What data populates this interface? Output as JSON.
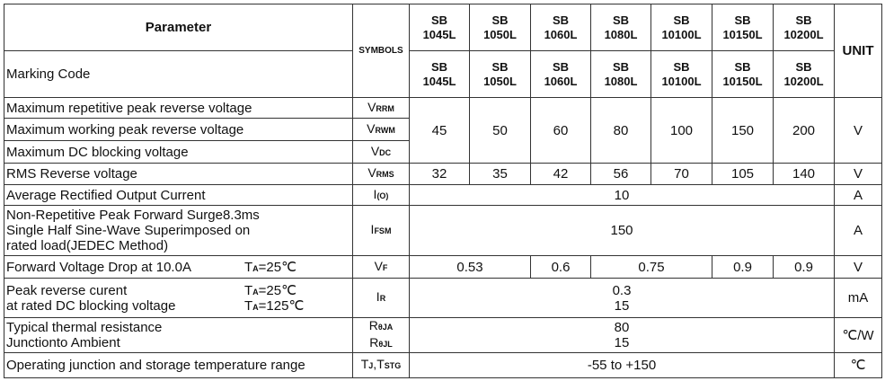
{
  "header": {
    "parameter": "Parameter",
    "symbols": "SYMBOLS",
    "unit": "UNIT",
    "models": [
      [
        "SB",
        "1045L"
      ],
      [
        "SB",
        "1050L"
      ],
      [
        "SB",
        "1060L"
      ],
      [
        "SB",
        "1080L"
      ],
      [
        "SB",
        "10100L"
      ],
      [
        "SB",
        "10150L"
      ],
      [
        "SB",
        "10200L"
      ]
    ]
  },
  "marking": {
    "label": "Marking Code",
    "codes": [
      [
        "SB",
        "1045L"
      ],
      [
        "SB",
        "1050L"
      ],
      [
        "SB",
        "1060L"
      ],
      [
        "SB",
        "1080L"
      ],
      [
        "SB",
        "10100L"
      ],
      [
        "SB",
        "10150L"
      ],
      [
        "SB",
        "10200L"
      ]
    ]
  },
  "rows": {
    "vrrm": {
      "label": "Maximum repetitive peak reverse voltage",
      "sym": "V",
      "sub": "RRM"
    },
    "vrwm": {
      "label": "Maximum working peak reverse voltage",
      "sym": "V",
      "sub": "RWM"
    },
    "vdc": {
      "label": "Maximum DC blocking voltage",
      "sym": "V",
      "sub": "DC"
    },
    "voltage_values": [
      "45",
      "50",
      "60",
      "80",
      "100",
      "150",
      "200"
    ],
    "voltage_unit": "V",
    "vrms": {
      "label": "RMS Reverse voltage",
      "sym": "V",
      "sub": "RMS",
      "values": [
        "32",
        "35",
        "42",
        "56",
        "70",
        "105",
        "140"
      ],
      "unit": "V"
    },
    "io": {
      "label": "Average Rectified Output Current",
      "sym": "I",
      "sub": "(O)",
      "value": "10",
      "unit": "A"
    },
    "ifsm": {
      "lines": [
        "Non-Repetitive Peak Forward Surge8.3ms",
        "Single Half Sine-Wave Superimposed on",
        "rated load(JEDEC Method)"
      ],
      "sym": "I",
      "sub": "FSM",
      "value": "150",
      "unit": "A"
    },
    "vf": {
      "label": "Forward Voltage Drop at 10.0A",
      "cond_t": "T",
      "cond_sub": "A",
      "cond_val": "=25℃",
      "sym": "V",
      "sub": "F",
      "values": [
        "0.53",
        "0.6",
        "0.75",
        "0.9",
        "0.9"
      ],
      "unit": "V"
    },
    "ir": {
      "lines": [
        "Peak reverse curent",
        "at rated DC blocking voltage"
      ],
      "conds": [
        [
          "T",
          "A",
          "=25℃"
        ],
        [
          "T",
          "A",
          "=125℃"
        ]
      ],
      "sym": "I",
      "sub": "R",
      "values": [
        "0.3",
        "15"
      ],
      "unit": "mA"
    },
    "rth": {
      "lines": [
        "Typical thermal resistance",
        "Junctionto Ambient"
      ],
      "syms": [
        [
          "R",
          "θJA"
        ],
        [
          "R",
          "θJL"
        ]
      ],
      "values": [
        "80",
        "15"
      ],
      "unit": "℃/W"
    },
    "tj": {
      "label": "Operating junction and storage temperature range",
      "sym1": "T",
      "sub1": "J",
      "sep": ",",
      "sym2": "T",
      "sub2": "STG",
      "value": "-55 to +150",
      "unit": "℃"
    }
  }
}
